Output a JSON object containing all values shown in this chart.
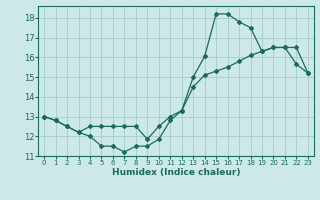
{
  "xlabel": "Humidex (Indice chaleur)",
  "bg_color": "#cce8e8",
  "grid_color": "#aacfcf",
  "line_color": "#1a6b5a",
  "xlim": [
    -0.5,
    23.5
  ],
  "ylim": [
    11,
    18.6
  ],
  "yticks": [
    11,
    12,
    13,
    14,
    15,
    16,
    17,
    18
  ],
  "xticks": [
    0,
    1,
    2,
    3,
    4,
    5,
    6,
    7,
    8,
    9,
    10,
    11,
    12,
    13,
    14,
    15,
    16,
    17,
    18,
    19,
    20,
    21,
    22,
    23
  ],
  "line1_x": [
    0,
    1,
    2,
    3,
    4,
    5,
    6,
    7,
    8,
    9,
    10,
    11,
    12,
    13,
    14,
    15,
    16,
    17,
    18,
    19,
    20,
    21,
    22,
    23
  ],
  "line1_y": [
    13.0,
    12.8,
    12.5,
    12.2,
    12.0,
    11.5,
    11.5,
    11.2,
    11.5,
    11.5,
    11.85,
    12.8,
    13.3,
    15.0,
    16.05,
    18.2,
    18.2,
    17.8,
    17.5,
    16.3,
    16.5,
    16.5,
    15.65,
    15.2
  ],
  "line2_x": [
    0,
    1,
    2,
    3,
    4,
    5,
    6,
    7,
    8,
    9,
    10,
    11,
    12,
    13,
    14,
    15,
    16,
    17,
    18,
    19,
    20,
    21,
    22,
    23
  ],
  "line2_y": [
    13.0,
    12.8,
    12.5,
    12.2,
    12.5,
    12.5,
    12.5,
    12.5,
    12.5,
    11.85,
    12.5,
    13.0,
    13.3,
    14.5,
    15.1,
    15.3,
    15.5,
    15.8,
    16.1,
    16.3,
    16.5,
    16.5,
    16.5,
    15.2
  ]
}
